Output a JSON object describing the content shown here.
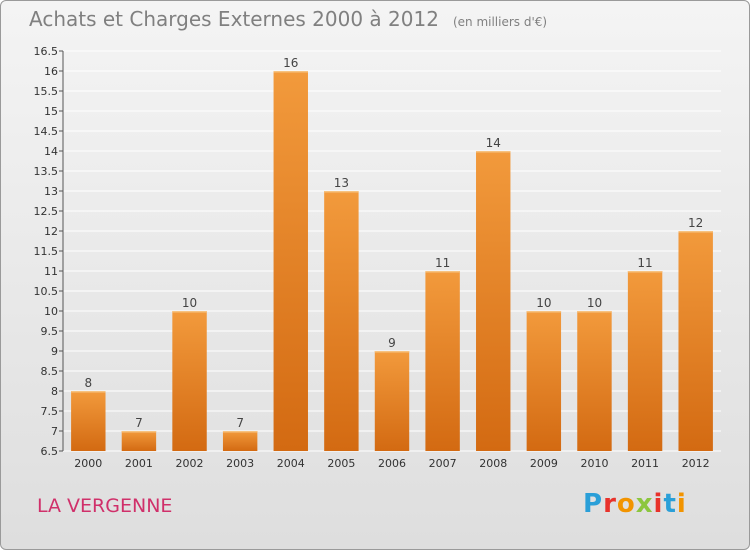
{
  "title": "Achats et Charges Externes 2000 à 2012",
  "subtitle": "(en milliers d'€)",
  "place": "LA VERGENNE",
  "logo": {
    "letters": [
      "P",
      "r",
      "o",
      "x",
      "i",
      "t",
      "i"
    ],
    "colors": [
      "#2a9fd8",
      "#e8322b",
      "#f29400",
      "#8cc63f",
      "#e8322b",
      "#2a9fd8",
      "#f29400"
    ]
  },
  "colors": {
    "bar": "#f29a3c",
    "bar_dark": "#d36a12",
    "grid": "#ffffff"
  },
  "chart_data": {
    "type": "bar",
    "title": "Achats et Charges Externes 2000 à 2012",
    "subtitle": "(en milliers d'€)",
    "categories": [
      "2000",
      "2001",
      "2002",
      "2003",
      "2004",
      "2005",
      "2006",
      "2007",
      "2008",
      "2009",
      "2010",
      "2011",
      "2012"
    ],
    "values": [
      8,
      7,
      10,
      7,
      16,
      13,
      9,
      11,
      14,
      10,
      10,
      11,
      12
    ],
    "ylim": [
      6.5,
      16.5
    ],
    "yticks": [
      6.5,
      7,
      7.5,
      8,
      8.5,
      9,
      9.5,
      10,
      10.5,
      11,
      11.5,
      12,
      12.5,
      13,
      13.5,
      14,
      14.5,
      15,
      15.5,
      16,
      16.5
    ],
    "grid": true,
    "legend": "none"
  }
}
